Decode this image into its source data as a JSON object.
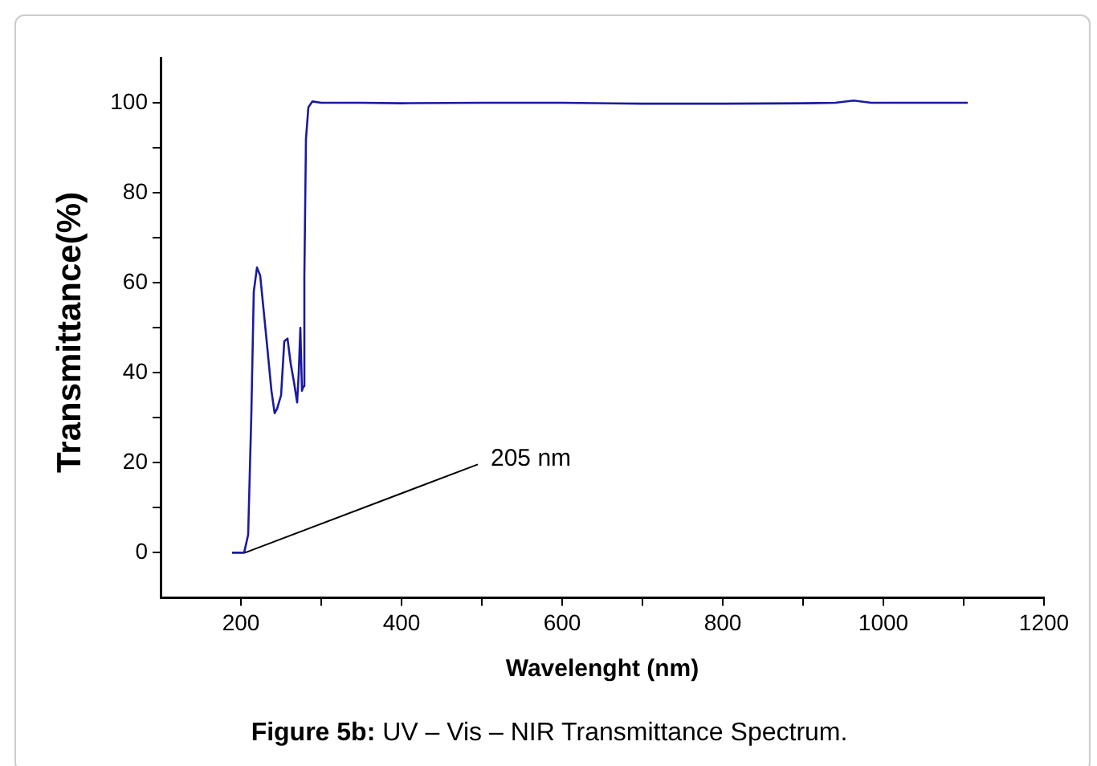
{
  "chart_data": {
    "type": "line",
    "xlabel": "Wavelenght (nm)",
    "ylabel": "Transmittance(%)",
    "xlim": [
      100,
      1200
    ],
    "ylim": [
      -10,
      110
    ],
    "xticks": [
      200,
      {
        "value": 300,
        "label": null
      },
      400,
      {
        "value": 500,
        "label": null
      },
      600,
      {
        "value": 700,
        "label": null
      },
      800,
      {
        "value": 900,
        "label": null
      },
      1000,
      {
        "value": 1100,
        "label": null
      },
      1200
    ],
    "yticks": [
      0,
      {
        "value": 10,
        "label": null
      },
      20,
      {
        "value": 30,
        "label": null
      },
      40,
      {
        "value": 50,
        "label": null
      },
      60,
      {
        "value": 70,
        "label": null
      },
      80,
      {
        "value": 90,
        "label": null
      },
      100
    ],
    "grid": false,
    "legend": false,
    "marker": "none",
    "line_style": "solid",
    "series": [
      {
        "color": "#1a1aa0",
        "x": [
          189,
          204,
          209,
          213,
          216,
          220,
          224,
          231,
          238,
          242,
          245,
          250,
          254,
          258,
          262,
          266,
          270,
          272,
          274,
          276,
          278,
          279,
          281,
          284,
          289,
          300,
          350,
          400,
          500,
          600,
          700,
          800,
          900,
          940,
          963,
          985,
          1000,
          1105
        ],
        "values": [
          0,
          0,
          4,
          31,
          58,
          63.4,
          61.6,
          49,
          36,
          31,
          32,
          35,
          47,
          47.6,
          42,
          38,
          33.4,
          40,
          50,
          36,
          37,
          61.6,
          92,
          99,
          100.3,
          100,
          100,
          99.9,
          100,
          100,
          99.8,
          99.8,
          99.9,
          100,
          100.5,
          100,
          100,
          100
        ]
      }
    ],
    "annotations": [
      {
        "text": "205 nm",
        "x": 205,
        "y": 0
      },
      "Figure 5b: UV – Vis – NIR Transmittance Spectrum."
    ]
  }
}
